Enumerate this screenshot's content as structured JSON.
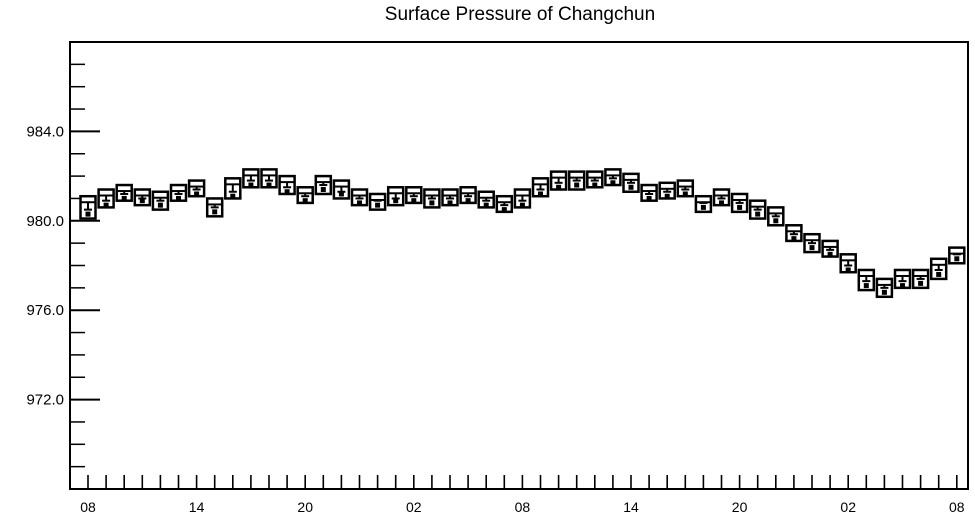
{
  "chart_data": {
    "type": "box",
    "title": "Surface Pressure of Changchun",
    "xlabel": "",
    "ylabel": "",
    "ylim": [
      968.0,
      988.0
    ],
    "y_ticks": [
      "972.0",
      "976.0",
      "980.0",
      "984.0"
    ],
    "y_tick_values": [
      972.0,
      976.0,
      980.0,
      984.0
    ],
    "x_tick_labels": [
      {
        "label": "08",
        "index": 0
      },
      {
        "label": "14",
        "index": 6
      },
      {
        "label": "20",
        "index": 12
      },
      {
        "label": "02",
        "index": 18
      },
      {
        "label": "08",
        "index": 24
      },
      {
        "label": "14",
        "index": 30
      },
      {
        "label": "20",
        "index": 36
      },
      {
        "label": "02",
        "index": 42
      },
      {
        "label": "08",
        "index": 48
      }
    ],
    "n_steps": 49,
    "grid": false,
    "series": [
      {
        "box_low": [
          980.1,
          980.6,
          980.9,
          980.7,
          980.5,
          980.9,
          981.1,
          980.2,
          981.0,
          981.5,
          981.5,
          981.2,
          980.8,
          981.2,
          981.0,
          980.7,
          980.5,
          980.7,
          980.8,
          980.6,
          980.7,
          980.8,
          980.6,
          980.4,
          980.6,
          981.1,
          981.4,
          981.4,
          981.5,
          981.6,
          981.3,
          980.9,
          981.0,
          981.1,
          980.4,
          980.7,
          980.4,
          980.1,
          979.8,
          979.1,
          978.6,
          978.4,
          977.7,
          976.9,
          976.6,
          977.0,
          977.0,
          977.4,
          978.1
        ],
        "box_high": [
          981.1,
          981.4,
          981.6,
          981.4,
          981.3,
          981.6,
          981.8,
          981.0,
          981.9,
          982.3,
          982.3,
          982.0,
          981.5,
          982.0,
          981.8,
          981.4,
          981.2,
          981.5,
          981.5,
          981.4,
          981.4,
          981.5,
          981.3,
          981.1,
          981.4,
          981.9,
          982.2,
          982.2,
          982.2,
          982.3,
          982.1,
          981.6,
          981.7,
          981.8,
          981.1,
          981.4,
          981.2,
          980.9,
          980.6,
          979.8,
          979.4,
          979.1,
          978.5,
          977.8,
          977.4,
          977.8,
          977.8,
          978.3,
          978.8
        ],
        "median": [
          980.5,
          980.9,
          981.2,
          981.0,
          980.9,
          981.2,
          981.4,
          980.6,
          981.3,
          981.8,
          981.8,
          981.5,
          981.1,
          981.6,
          981.3,
          981.0,
          980.9,
          981.0,
          981.1,
          981.0,
          981.0,
          981.1,
          980.9,
          980.7,
          980.9,
          981.4,
          981.7,
          981.8,
          981.8,
          981.9,
          981.7,
          981.2,
          981.3,
          981.4,
          980.8,
          981.0,
          980.8,
          980.5,
          980.2,
          979.4,
          979.0,
          978.7,
          978.0,
          977.3,
          977.0,
          977.3,
          977.4,
          977.8,
          978.5
        ],
        "mean": [
          980.3,
          980.7,
          981.0,
          980.9,
          980.7,
          981.0,
          981.2,
          980.4,
          981.1,
          981.6,
          981.6,
          981.3,
          980.9,
          981.4,
          981.2,
          980.8,
          980.7,
          980.9,
          980.9,
          980.8,
          980.8,
          980.9,
          980.7,
          980.5,
          980.7,
          981.2,
          981.5,
          981.6,
          981.6,
          981.7,
          981.5,
          981.0,
          981.1,
          981.2,
          980.6,
          980.8,
          980.6,
          980.3,
          980.0,
          979.2,
          978.8,
          978.5,
          977.8,
          977.1,
          976.8,
          977.1,
          977.2,
          977.6,
          978.3
        ]
      }
    ]
  }
}
